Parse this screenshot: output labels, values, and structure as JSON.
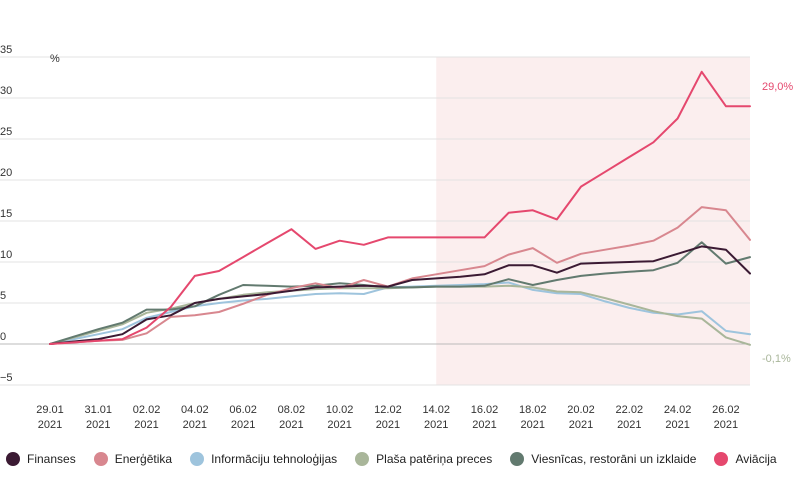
{
  "chart_data": {
    "type": "line",
    "y_unit": "%",
    "ylim": [
      -5,
      35
    ],
    "yticks": [
      -5,
      0,
      5,
      10,
      15,
      20,
      25,
      30,
      35
    ],
    "x": [
      "29.01.2021",
      "30.01.2021",
      "31.01.2021",
      "01.02.2021",
      "02.02.2021",
      "03.02.2021",
      "04.02.2021",
      "05.02.2021",
      "06.02.2021",
      "07.02.2021",
      "08.02.2021",
      "09.02.2021",
      "10.02.2021",
      "11.02.2021",
      "12.02.2021",
      "13.02.2021",
      "14.02.2021",
      "15.02.2021",
      "16.02.2021",
      "17.02.2021",
      "18.02.2021",
      "19.02.2021",
      "20.02.2021",
      "21.02.2021",
      "22.02.2021",
      "23.02.2021",
      "24.02.2021",
      "25.02.2021",
      "26.02.2021",
      "27.02.2021"
    ],
    "xticks": [
      {
        "date": "29.01",
        "year": "2021"
      },
      {
        "date": "31.01",
        "year": "2021"
      },
      {
        "date": "02.02",
        "year": "2021"
      },
      {
        "date": "04.02",
        "year": "2021"
      },
      {
        "date": "06.02",
        "year": "2021"
      },
      {
        "date": "08.02",
        "year": "2021"
      },
      {
        "date": "10.02",
        "year": "2021"
      },
      {
        "date": "12.02",
        "year": "2021"
      },
      {
        "date": "14.02",
        "year": "2021"
      },
      {
        "date": "16.02",
        "year": "2021"
      },
      {
        "date": "18.02",
        "year": "2021"
      },
      {
        "date": "20.02",
        "year": "2021"
      },
      {
        "date": "22.02",
        "year": "2021"
      },
      {
        "date": "24.02",
        "year": "2021"
      },
      {
        "date": "26.02",
        "year": "2021"
      }
    ],
    "highlight_range": [
      "14.02.2021",
      "27.02.2021"
    ],
    "highlight_color": "#fbeeee",
    "series": [
      {
        "name": "Finanses",
        "color": "#3b1a33",
        "values": [
          0,
          0.3,
          0.6,
          1.2,
          3.0,
          3.5,
          5.0,
          5.5,
          5.8,
          6.1,
          6.5,
          6.9,
          7.0,
          7.1,
          7.0,
          7.8,
          8.0,
          8.2,
          8.5,
          9.6,
          9.6,
          8.7,
          9.8,
          9.9,
          10.0,
          10.1,
          11.0,
          11.9,
          11.5,
          8.6
        ]
      },
      {
        "name": "Enerģētika",
        "color": "#d8878f",
        "values": [
          0,
          0.2,
          0.4,
          0.5,
          1.3,
          3.3,
          3.5,
          3.9,
          4.9,
          6.0,
          6.8,
          7.4,
          6.8,
          7.8,
          7.0,
          8.0,
          8.5,
          9.0,
          9.5,
          10.9,
          11.7,
          9.9,
          11.0,
          11.5,
          12.0,
          12.6,
          14.2,
          16.7,
          16.3,
          12.7
        ]
      },
      {
        "name": "Informāciju tehnoloģijas",
        "color": "#9ec4dd",
        "values": [
          0,
          0.6,
          1.2,
          1.8,
          3.2,
          3.9,
          4.6,
          5.0,
          5.3,
          5.5,
          5.8,
          6.1,
          6.2,
          6.1,
          6.9,
          7.0,
          7.1,
          7.2,
          7.3,
          7.5,
          6.6,
          6.2,
          6.1,
          5.2,
          4.4,
          3.8,
          3.6,
          4.0,
          1.6,
          1.2
        ]
      },
      {
        "name": "Plaša patēriņa preces",
        "color": "#a9b69a",
        "values": [
          0,
          0.8,
          1.6,
          2.4,
          3.8,
          4.3,
          5.0,
          5.5,
          6.0,
          6.3,
          6.5,
          6.7,
          6.8,
          6.8,
          6.8,
          6.9,
          7.0,
          7.0,
          7.0,
          7.1,
          6.9,
          6.4,
          6.3,
          5.6,
          4.8,
          4.0,
          3.4,
          3.1,
          0.8,
          -0.1
        ]
      },
      {
        "name": "Viesnīcas, restorāni un izklaide",
        "color": "#627a6f",
        "values": [
          0,
          0.9,
          1.8,
          2.6,
          4.2,
          4.2,
          4.6,
          6.0,
          7.2,
          7.1,
          7.0,
          7.1,
          7.4,
          7.2,
          6.9,
          6.9,
          7.0,
          7.0,
          7.1,
          7.9,
          7.2,
          7.8,
          8.3,
          8.6,
          8.8,
          9.0,
          9.9,
          12.4,
          9.8,
          10.6
        ]
      },
      {
        "name": "Aviācija",
        "color": "#e5486e",
        "values": [
          0,
          0.2,
          0.4,
          0.6,
          2.0,
          4.5,
          8.3,
          8.9,
          10.6,
          12.3,
          14.0,
          11.6,
          12.6,
          12.1,
          13.0,
          13.0,
          13.0,
          13.0,
          13.0,
          16.0,
          16.3,
          15.2,
          19.2,
          21.0,
          22.8,
          24.6,
          27.5,
          33.2,
          29.0,
          29.0
        ]
      }
    ],
    "end_labels": [
      {
        "series": "Aviācija",
        "text": "29,0%"
      },
      {
        "series": "Plaša patēriņa preces",
        "text": "-0,1%"
      }
    ],
    "grid": true,
    "legend_position": "bottom"
  }
}
